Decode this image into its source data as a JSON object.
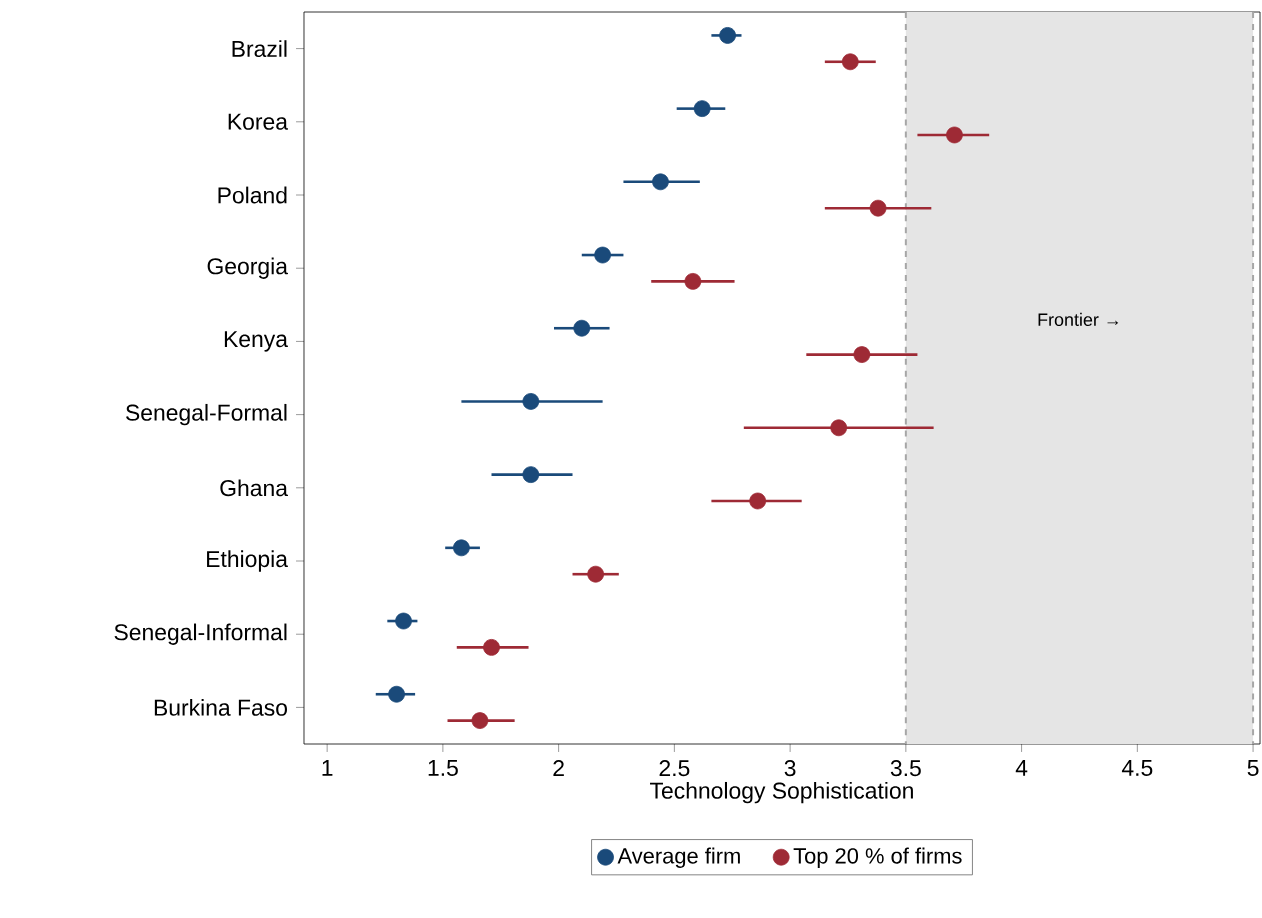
{
  "chart_data": {
    "type": "scatter",
    "orientation": "horizontal",
    "xlabel": "Technology Sophistication",
    "categories": [
      "Brazil",
      "Korea",
      "Poland",
      "Georgia",
      "Kenya",
      "Senegal-Formal",
      "Ghana",
      "Ethiopia",
      "Senegal-Informal",
      "Burkina Faso"
    ],
    "series": [
      {
        "name": "Average firm",
        "color": "#1a4a7a",
        "values": [
          2.73,
          2.62,
          2.44,
          2.19,
          2.1,
          1.88,
          1.88,
          1.58,
          1.33,
          1.3
        ],
        "errors": [
          [
            2.66,
            2.79
          ],
          [
            2.51,
            2.72
          ],
          [
            2.28,
            2.61
          ],
          [
            2.1,
            2.28
          ],
          [
            1.98,
            2.22
          ],
          [
            1.58,
            2.19
          ],
          [
            1.71,
            2.06
          ],
          [
            1.51,
            1.66
          ],
          [
            1.26,
            1.39
          ],
          [
            1.21,
            1.38
          ]
        ]
      },
      {
        "name": "Top 20 % of firms",
        "color": "#9e2a35",
        "values": [
          3.26,
          3.71,
          3.38,
          2.58,
          3.31,
          3.21,
          2.86,
          2.16,
          1.71,
          1.66
        ],
        "errors": [
          [
            3.15,
            3.37
          ],
          [
            3.55,
            3.86
          ],
          [
            3.15,
            3.61
          ],
          [
            2.4,
            2.76
          ],
          [
            3.07,
            3.55
          ],
          [
            2.8,
            3.62
          ],
          [
            2.66,
            3.05
          ],
          [
            2.06,
            2.26
          ],
          [
            1.56,
            1.87
          ],
          [
            1.52,
            1.81
          ]
        ]
      }
    ],
    "xlim": [
      0.9,
      5.03
    ],
    "xticks": [
      1,
      1.5,
      2,
      2.5,
      3,
      3.5,
      4,
      4.5,
      5
    ],
    "bands": [
      {
        "axis": "x",
        "from": 3.5,
        "to": 5,
        "label": "Frontier →",
        "color": "#e5e5e5"
      }
    ],
    "ref_lines": [
      {
        "axis": "x",
        "value": 3.5,
        "color": "#a6a6a6",
        "line_style": "dashed"
      },
      {
        "axis": "x",
        "value": 5,
        "color": "#a6a6a6",
        "line_style": "dashed"
      }
    ],
    "legend": "bottom",
    "grid": false
  }
}
